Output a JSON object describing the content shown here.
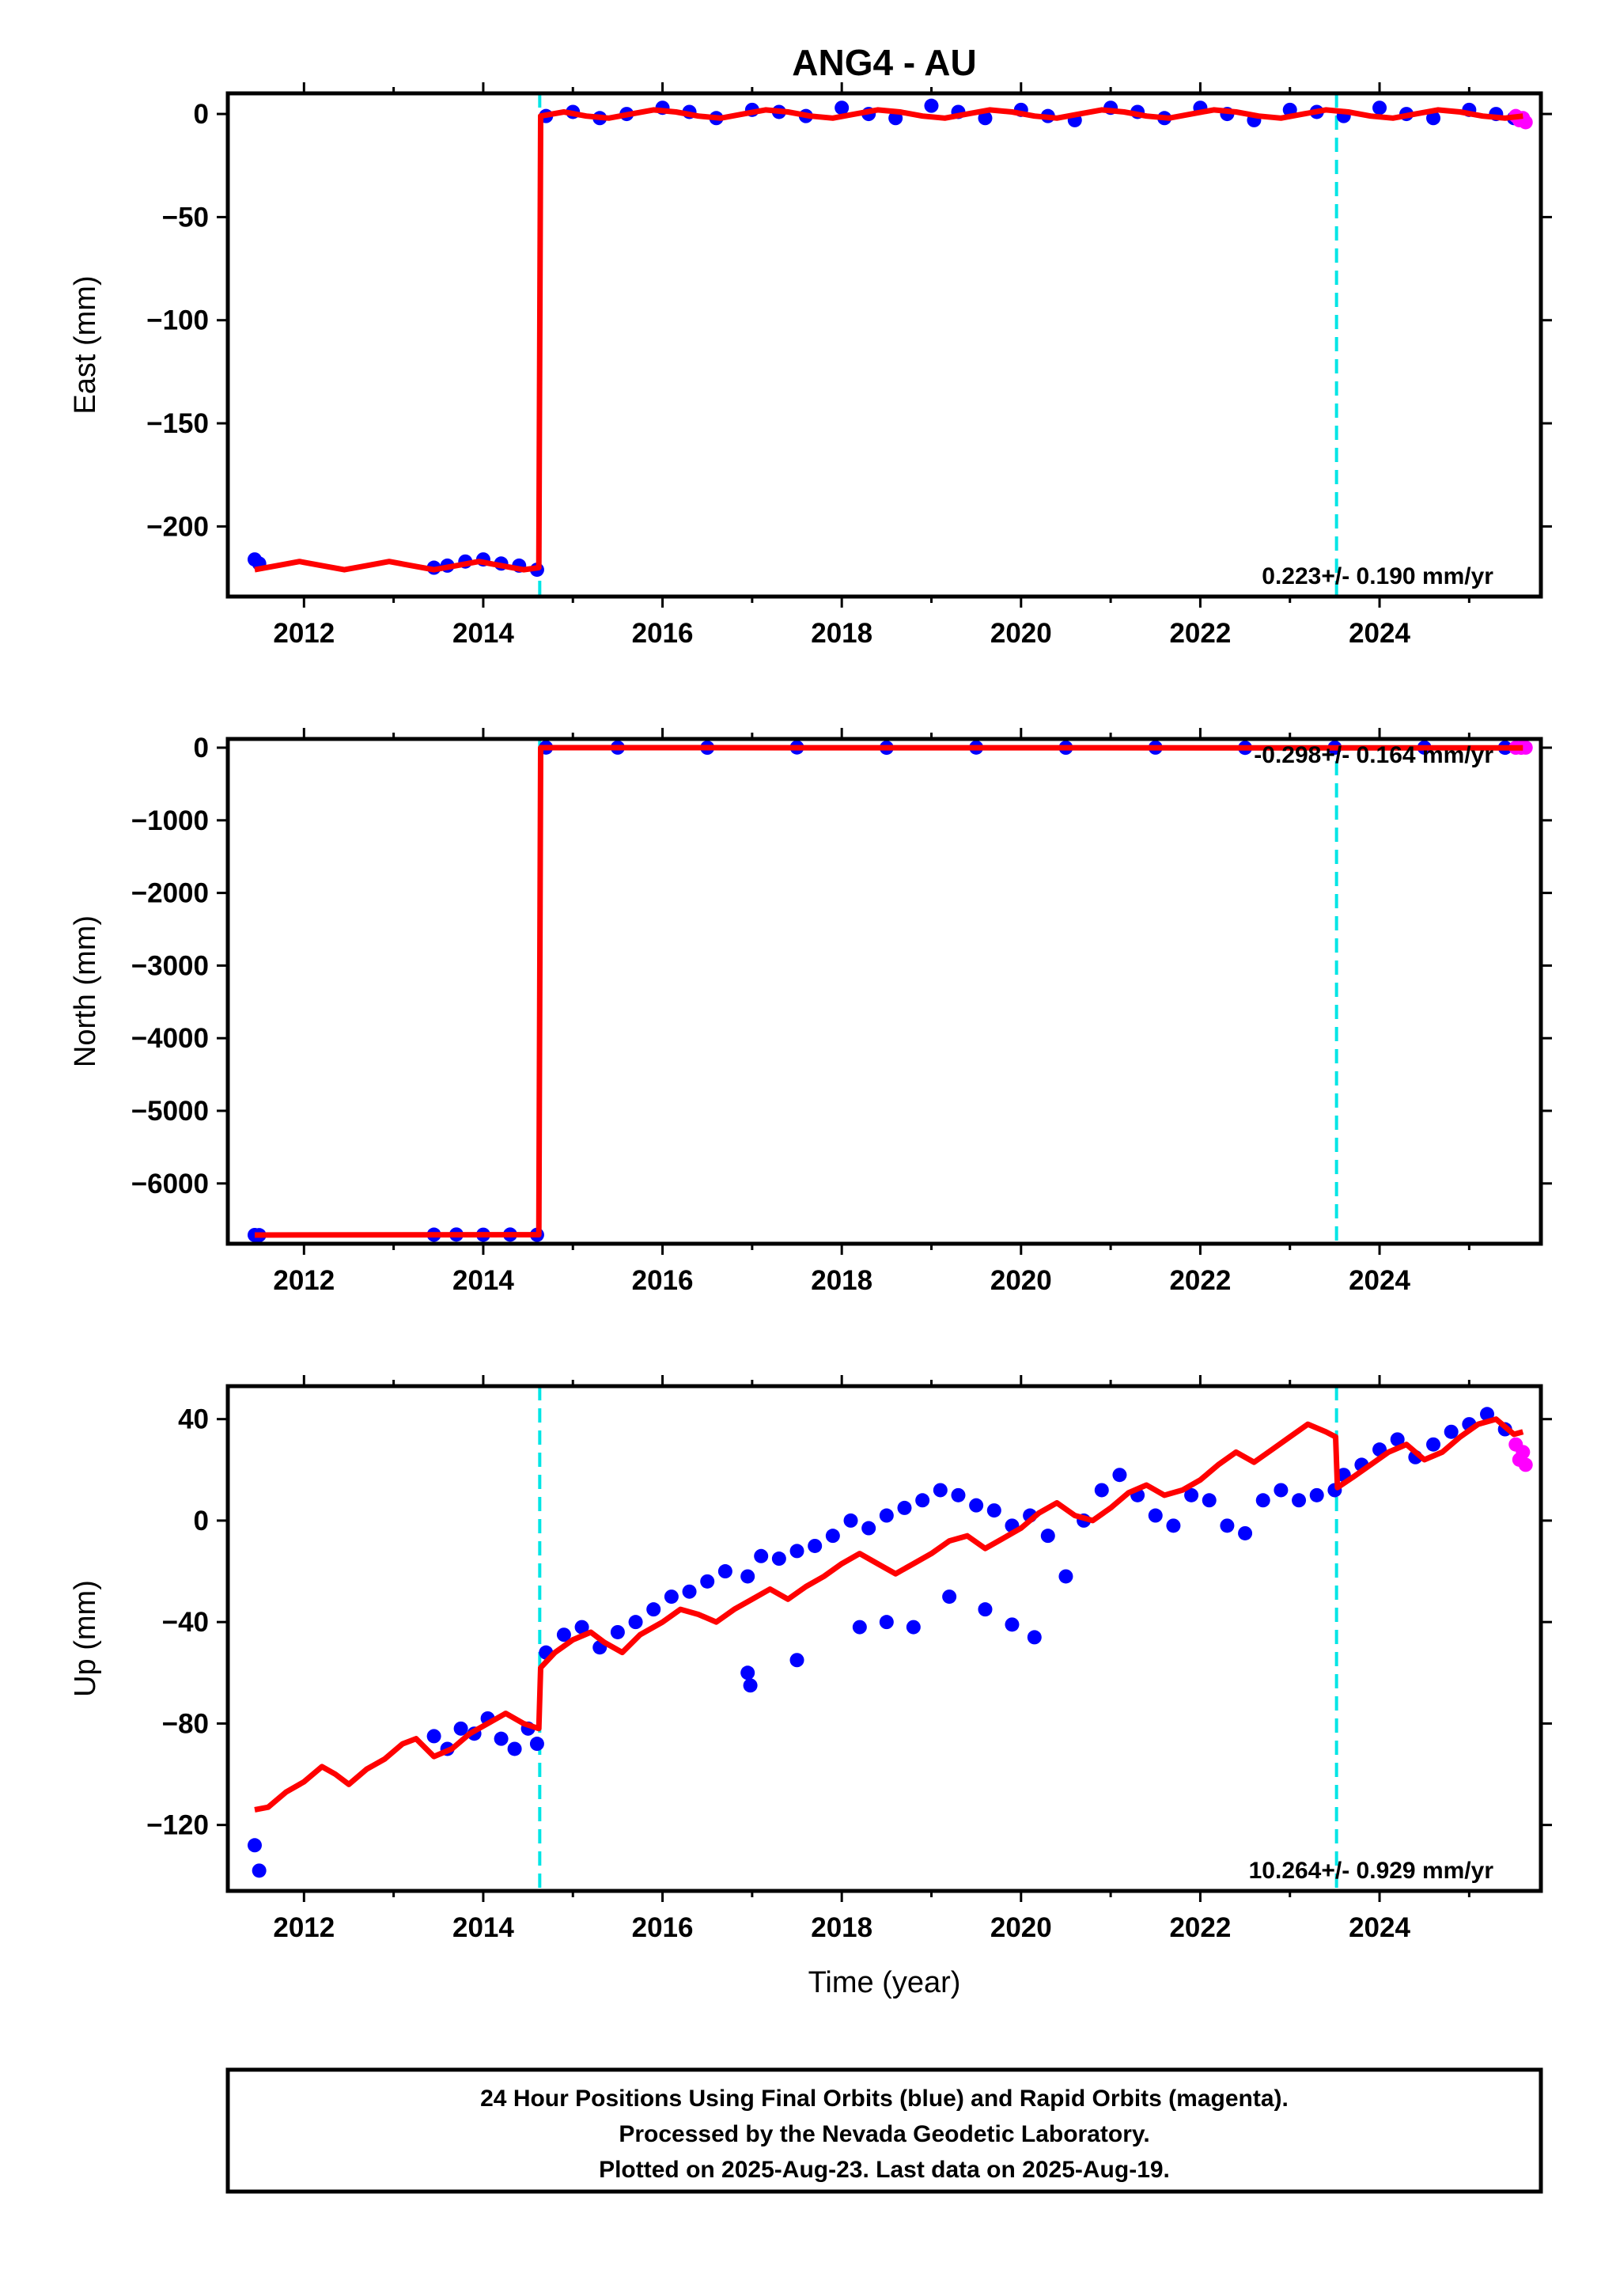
{
  "figure": {
    "title": "ANG4 - AU",
    "xlabel": "Time (year)",
    "footer": [
      "24 Hour Positions Using Final Orbits (blue) and Rapid Orbits (magenta).",
      "Processed by the Nevada Geodetic Laboratory.",
      "Plotted on 2025-Aug-23. Last data on 2025-Aug-19."
    ]
  },
  "colors": {
    "final_orbits": "#0000ff",
    "rapid_orbits": "#ff00ff",
    "model": "#ff0000",
    "event_line": "#00e5e5",
    "axes": "#000000"
  },
  "chart_data": [
    {
      "type": "scatter",
      "ylabel": "East (mm)",
      "xlim": [
        2011.15,
        2025.8
      ],
      "ylim": [
        -234,
        10
      ],
      "xticks": [
        2012,
        2014,
        2016,
        2018,
        2020,
        2022,
        2024
      ],
      "yticks": [
        0,
        -50,
        -100,
        -150,
        -200
      ],
      "event_lines": [
        2014.63,
        2023.52
      ],
      "rate_text": "0.223+/- 0.190 mm/yr",
      "series": [
        {
          "color": "blue",
          "x": [
            2011.45,
            2011.5,
            2013.45,
            2013.6,
            2013.8,
            2014.0,
            2014.2,
            2014.4,
            2014.6,
            2014.7,
            2015.0,
            2015.3,
            2015.6,
            2016.0,
            2016.3,
            2016.6,
            2017.0,
            2017.3,
            2017.6,
            2018.0,
            2018.3,
            2018.6,
            2019.0,
            2019.3,
            2019.6,
            2020.0,
            2020.3,
            2020.6,
            2021.0,
            2021.3,
            2021.6,
            2022.0,
            2022.3,
            2022.6,
            2023.0,
            2023.3,
            2023.6,
            2024.0,
            2024.3,
            2024.6,
            2025.0,
            2025.3,
            2025.5
          ],
          "y": [
            -216,
            -218,
            -220,
            -219,
            -217,
            -216,
            -218,
            -219,
            -221,
            -1,
            1,
            -2,
            0,
            3,
            1,
            -2,
            2,
            1,
            -1,
            3,
            0,
            -2,
            4,
            1,
            -2,
            2,
            -1,
            -3,
            3,
            1,
            -2,
            3,
            0,
            -3,
            2,
            1,
            -1,
            3,
            0,
            -2,
            2,
            0,
            -2
          ]
        },
        {
          "color": "magenta",
          "x": [
            2025.52,
            2025.56,
            2025.6,
            2025.63
          ],
          "y": [
            -1,
            -3,
            -2,
            -4
          ]
        }
      ],
      "model": {
        "x": [
          2011.45,
          2011.7,
          2011.95,
          2012.2,
          2012.45,
          2012.7,
          2012.95,
          2013.2,
          2013.45,
          2013.7,
          2013.95,
          2014.2,
          2014.45,
          2014.62,
          2014.64,
          2014.9,
          2015.15,
          2015.4,
          2015.65,
          2015.9,
          2016.15,
          2016.4,
          2016.65,
          2016.9,
          2017.15,
          2017.4,
          2017.65,
          2017.9,
          2018.15,
          2018.4,
          2018.65,
          2018.9,
          2019.15,
          2019.4,
          2019.65,
          2019.9,
          2020.15,
          2020.4,
          2020.65,
          2020.9,
          2021.15,
          2021.4,
          2021.65,
          2021.9,
          2022.15,
          2022.4,
          2022.65,
          2022.9,
          2023.15,
          2023.4,
          2023.65,
          2023.9,
          2024.15,
          2024.4,
          2024.65,
          2024.9,
          2025.15,
          2025.4,
          2025.6
        ],
        "y": [
          -221,
          -219,
          -217,
          -219,
          -221,
          -219,
          -217,
          -219,
          -221,
          -219,
          -217,
          -219,
          -221,
          -220,
          -1,
          1,
          -1,
          -2,
          0,
          2,
          1,
          -1,
          -2,
          0,
          2,
          1,
          -1,
          -2,
          0,
          2,
          1,
          -1,
          -2,
          0,
          2,
          1,
          -1,
          -2,
          0,
          2,
          1,
          -1,
          -2,
          0,
          2,
          1,
          -1,
          -2,
          0,
          2,
          1,
          -1,
          -2,
          0,
          2,
          1,
          -1,
          -2,
          -1
        ]
      }
    },
    {
      "type": "scatter",
      "ylabel": "North (mm)",
      "xlim": [
        2011.15,
        2025.8
      ],
      "ylim": [
        -6830,
        120
      ],
      "xticks": [
        2012,
        2014,
        2016,
        2018,
        2020,
        2022,
        2024
      ],
      "yticks": [
        0,
        -1000,
        -2000,
        -3000,
        -4000,
        -5000,
        -6000
      ],
      "event_lines": [
        2014.63,
        2023.52
      ],
      "rate_text": "-0.298+/- 0.164 mm/yr",
      "series": [
        {
          "color": "blue",
          "x": [
            2011.45,
            2011.5,
            2013.45,
            2013.7,
            2014.0,
            2014.3,
            2014.6,
            2014.7,
            2015.5,
            2016.5,
            2017.5,
            2018.5,
            2019.5,
            2020.5,
            2021.5,
            2022.5,
            2023.5,
            2024.5,
            2025.4
          ],
          "y": [
            -6710,
            -6712,
            -6705,
            -6703,
            -6706,
            -6704,
            -6707,
            2,
            1,
            0,
            3,
            -1,
            2,
            0,
            1,
            -2,
            0,
            1,
            -1
          ]
        },
        {
          "color": "magenta",
          "x": [
            2025.52,
            2025.58,
            2025.63
          ],
          "y": [
            0,
            -1,
            1
          ]
        }
      ],
      "model": {
        "x": [
          2011.45,
          2014.62,
          2014.64,
          2025.6
        ],
        "y": [
          -6710,
          -6706,
          0,
          -3
        ]
      }
    },
    {
      "type": "scatter",
      "ylabel": "Up (mm)",
      "xlim": [
        2011.15,
        2025.8
      ],
      "ylim": [
        -146,
        53
      ],
      "xticks": [
        2012,
        2014,
        2016,
        2018,
        2020,
        2022,
        2024
      ],
      "yticks": [
        40,
        0,
        -40,
        -80,
        -120
      ],
      "event_lines": [
        2014.63,
        2023.52
      ],
      "rate_text": "10.264+/- 0.929 mm/yr",
      "series": [
        {
          "color": "blue",
          "x": [
            2011.45,
            2011.5,
            2013.45,
            2013.6,
            2013.75,
            2013.9,
            2014.05,
            2014.2,
            2014.35,
            2014.5,
            2014.6,
            2014.7,
            2014.9,
            2015.1,
            2015.3,
            2015.5,
            2015.7,
            2015.9,
            2016.1,
            2016.3,
            2016.5,
            2016.7,
            2016.95,
            2017.1,
            2017.3,
            2017.5,
            2017.7,
            2017.9,
            2018.1,
            2018.3,
            2018.5,
            2018.7,
            2018.9,
            2019.1,
            2019.3,
            2019.5,
            2019.7,
            2019.9,
            2020.1,
            2020.3,
            2020.5,
            2020.7,
            2020.9,
            2021.1,
            2021.3,
            2021.5,
            2021.7,
            2021.9,
            2022.1,
            2022.3,
            2022.5,
            2022.7,
            2022.9,
            2023.1,
            2023.3,
            2023.5,
            2023.6,
            2023.8,
            2024.0,
            2024.2,
            2024.4,
            2024.6,
            2024.8,
            2025.0,
            2025.2,
            2025.4,
            2018.2,
            2018.5,
            2018.8,
            2019.2,
            2019.6,
            2019.9,
            2020.15,
            2017.5,
            2016.95,
            2016.98
          ],
          "y": [
            -128,
            -138,
            -85,
            -90,
            -82,
            -84,
            -78,
            -86,
            -90,
            -82,
            -88,
            -52,
            -45,
            -42,
            -50,
            -44,
            -40,
            -35,
            -30,
            -28,
            -24,
            -20,
            -22,
            -14,
            -15,
            -12,
            -10,
            -6,
            0,
            -3,
            2,
            5,
            8,
            12,
            10,
            6,
            4,
            -2,
            2,
            -6,
            -22,
            0,
            12,
            18,
            10,
            2,
            -2,
            10,
            8,
            -2,
            -5,
            8,
            12,
            8,
            10,
            12,
            18,
            22,
            28,
            32,
            25,
            30,
            35,
            38,
            42,
            36,
            -42,
            -40,
            -42,
            -30,
            -35,
            -41,
            -46,
            -55,
            -60,
            -65
          ]
        },
        {
          "color": "magenta",
          "x": [
            2025.52,
            2025.56,
            2025.6,
            2025.63
          ],
          "y": [
            30,
            24,
            27,
            22
          ]
        }
      ],
      "model": {
        "x": [
          2011.45,
          2011.6,
          2011.8,
          2012.0,
          2012.2,
          2012.35,
          2012.5,
          2012.7,
          2012.9,
          2013.1,
          2013.25,
          2013.45,
          2013.65,
          2013.85,
          2014.05,
          2014.25,
          2014.45,
          2014.62,
          2014.64,
          2014.8,
          2015.0,
          2015.2,
          2015.35,
          2015.55,
          2015.75,
          2016.0,
          2016.2,
          2016.4,
          2016.6,
          2016.8,
          2017.0,
          2017.2,
          2017.4,
          2017.6,
          2017.8,
          2018.0,
          2018.2,
          2018.4,
          2018.6,
          2018.8,
          2019.0,
          2019.2,
          2019.4,
          2019.6,
          2019.8,
          2020.0,
          2020.2,
          2020.4,
          2020.6,
          2020.8,
          2021.0,
          2021.2,
          2021.4,
          2021.6,
          2021.8,
          2022.0,
          2022.2,
          2022.4,
          2022.6,
          2022.8,
          2023.0,
          2023.2,
          2023.4,
          2023.51,
          2023.53,
          2023.7,
          2023.9,
          2024.1,
          2024.3,
          2024.5,
          2024.7,
          2024.9,
          2025.1,
          2025.3,
          2025.5,
          2025.6
        ],
        "y": [
          -114,
          -113,
          -107,
          -103,
          -97,
          -100,
          -104,
          -98,
          -94,
          -88,
          -86,
          -93,
          -90,
          -84,
          -80,
          -76,
          -80,
          -82,
          -58,
          -52,
          -47,
          -44,
          -48,
          -52,
          -45,
          -40,
          -35,
          -37,
          -40,
          -35,
          -31,
          -27,
          -31,
          -26,
          -22,
          -17,
          -13,
          -17,
          -21,
          -17,
          -13,
          -8,
          -6,
          -11,
          -7,
          -3,
          3,
          7,
          2,
          0,
          5,
          11,
          14,
          10,
          12,
          16,
          22,
          27,
          23,
          28,
          33,
          38,
          35,
          33,
          13,
          17,
          22,
          27,
          30,
          24,
          27,
          33,
          38,
          40,
          34,
          35
        ]
      }
    }
  ]
}
